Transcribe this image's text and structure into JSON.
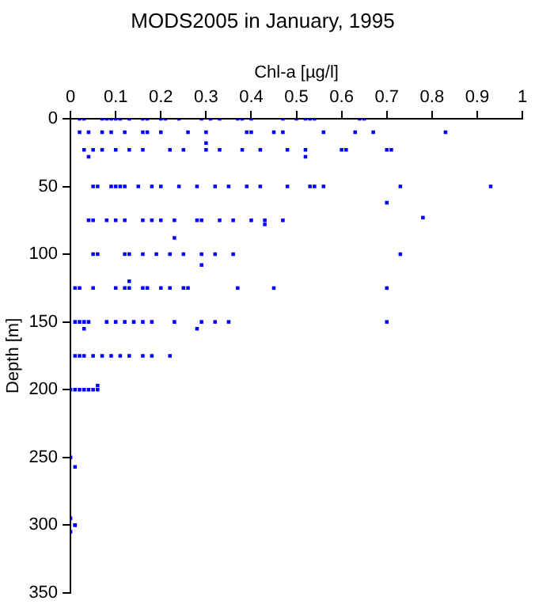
{
  "chart_data": {
    "type": "scatter",
    "title": "MODS2005 in January, 1995",
    "xlabel": "Chl-a [µg/l]",
    "ylabel": "Depth [m]",
    "xlim": [
      0,
      1
    ],
    "xticks": [
      0,
      0.1,
      0.2,
      0.3,
      0.4,
      0.5,
      0.6,
      0.7,
      0.8,
      0.9,
      1
    ],
    "ylim": [
      350,
      0
    ],
    "yticks": [
      0,
      50,
      100,
      150,
      200,
      250,
      300,
      350
    ],
    "grid": false,
    "legend": false,
    "marker": "square",
    "series": [
      {
        "color": "#0000ff",
        "x": [
          0.02,
          0.03,
          0.07,
          0.08,
          0.09,
          0.1,
          0.11,
          0.13,
          0.16,
          0.17,
          0.2,
          0.21,
          0.24,
          0.29,
          0.31,
          0.33,
          0.37,
          0.38,
          0.4,
          0.47,
          0.5,
          0.52,
          0.53,
          0.54,
          0.64,
          0.65,
          0.02,
          0.04,
          0.07,
          0.09,
          0.12,
          0.16,
          0.17,
          0.2,
          0.26,
          0.3,
          0.39,
          0.4,
          0.45,
          0.47,
          0.56,
          0.63,
          0.67,
          0.83,
          0.03,
          0.05,
          0.07,
          0.1,
          0.13,
          0.16,
          0.22,
          0.25,
          0.3,
          0.33,
          0.38,
          0.42,
          0.48,
          0.52,
          0.6,
          0.61,
          0.7,
          0.71,
          0.52,
          0.04,
          0.3,
          0.05,
          0.06,
          0.09,
          0.1,
          0.11,
          0.12,
          0.15,
          0.18,
          0.2,
          0.24,
          0.28,
          0.32,
          0.35,
          0.39,
          0.42,
          0.48,
          0.53,
          0.54,
          0.56,
          0.73,
          0.93,
          0.7,
          0.04,
          0.05,
          0.08,
          0.1,
          0.12,
          0.16,
          0.18,
          0.2,
          0.23,
          0.28,
          0.29,
          0.33,
          0.36,
          0.4,
          0.43,
          0.47,
          0.43,
          0.78,
          0.23,
          0.05,
          0.06,
          0.12,
          0.13,
          0.16,
          0.19,
          0.22,
          0.25,
          0.29,
          0.32,
          0.36,
          0.73,
          0.29,
          0.01,
          0.02,
          0.05,
          0.1,
          0.12,
          0.13,
          0.16,
          0.17,
          0.2,
          0.22,
          0.25,
          0.26,
          0.37,
          0.45,
          0.7,
          0.13,
          0.01,
          0.02,
          0.03,
          0.04,
          0.08,
          0.1,
          0.12,
          0.14,
          0.16,
          0.18,
          0.23,
          0.29,
          0.32,
          0.35,
          0.7,
          0.03,
          0.28,
          0.01,
          0.02,
          0.03,
          0.05,
          0.07,
          0.09,
          0.11,
          0.13,
          0.16,
          0.18,
          0.22,
          0,
          0.01,
          0.02,
          0.03,
          0.04,
          0.05,
          0.06,
          0.06,
          0,
          0.01,
          0,
          0.01,
          0,
          0.01
        ],
        "values": [
          0,
          0,
          0,
          0,
          0,
          0,
          0,
          0,
          0,
          0,
          0,
          0,
          0,
          0,
          0,
          0,
          0,
          0,
          0,
          0,
          0,
          0,
          0,
          0,
          0,
          0,
          10,
          10,
          10,
          10,
          10,
          10,
          10,
          10,
          10,
          10,
          10,
          10,
          10,
          10,
          10,
          10,
          10,
          10,
          23,
          23,
          23,
          23,
          23,
          23,
          23,
          23,
          23,
          23,
          23,
          23,
          23,
          23,
          23,
          23,
          23,
          23,
          28,
          28,
          18,
          50,
          50,
          50,
          50,
          50,
          50,
          50,
          50,
          50,
          50,
          50,
          50,
          50,
          50,
          50,
          50,
          50,
          50,
          50,
          50,
          50,
          62,
          75,
          75,
          75,
          75,
          75,
          75,
          75,
          75,
          75,
          75,
          75,
          75,
          75,
          75,
          75,
          75,
          78,
          73,
          88,
          100,
          100,
          100,
          100,
          100,
          100,
          100,
          100,
          100,
          100,
          100,
          100,
          108,
          125,
          125,
          125,
          125,
          125,
          125,
          125,
          125,
          125,
          125,
          125,
          125,
          125,
          125,
          125,
          120,
          150,
          150,
          150,
          150,
          150,
          150,
          150,
          150,
          150,
          150,
          150,
          150,
          150,
          150,
          150,
          155,
          155,
          175,
          175,
          175,
          175,
          175,
          175,
          175,
          175,
          175,
          175,
          175,
          200,
          200,
          200,
          200,
          200,
          200,
          200,
          197,
          250,
          257,
          295,
          300,
          305,
          300
        ]
      }
    ]
  }
}
